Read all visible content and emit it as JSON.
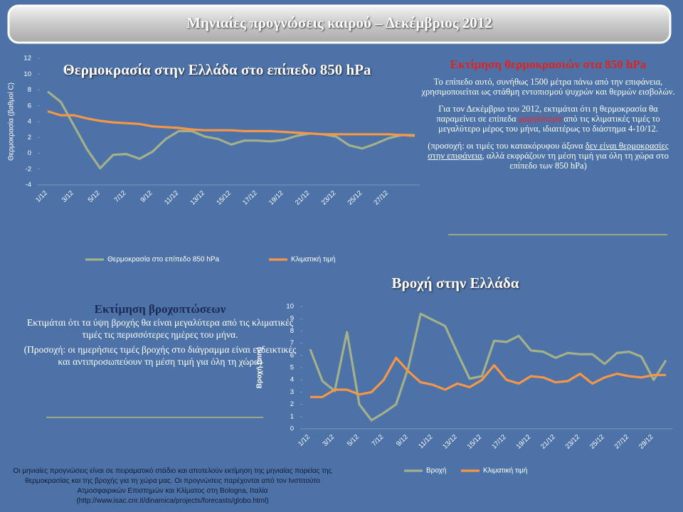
{
  "header": {
    "title": "Μηνιαίες προγνώσεις καιρού – Δεκέμβριος 2012"
  },
  "chart_data": [
    {
      "type": "line",
      "title": "Θερμοκρασία στην Ελλάδα στο επίπεδο 850 hPa",
      "y_label": "Θερμοκρασία (βαθμοί C)",
      "categories": [
        "1/12",
        null,
        "3/12",
        null,
        "5/12",
        null,
        "7/12",
        null,
        "9/12",
        null,
        "11/12",
        null,
        "13/12",
        null,
        "15/12",
        null,
        "17/12",
        null,
        "19/12",
        null,
        "21/12",
        null,
        "23/12",
        null,
        "25/12",
        null,
        "27/12",
        null,
        null
      ],
      "series": [
        {
          "name": "Θερμοκρασία στο επίπεδο 850 hPa",
          "color": "#a3b08a",
          "values": [
            7.8,
            6.5,
            3.5,
            0.5,
            -1.9,
            -0.2,
            -0.1,
            -0.7,
            0.2,
            1.8,
            2.8,
            2.8,
            2.1,
            1.8,
            1.1,
            1.6,
            1.6,
            1.5,
            1.7,
            2.2,
            2.5,
            2.4,
            2.1,
            1.0,
            0.6,
            1.2,
            1.9,
            2.3,
            2.3
          ]
        },
        {
          "name": "Κλιματική τιμή",
          "color": "#f79646",
          "values": [
            5.3,
            4.8,
            4.8,
            4.4,
            4.1,
            3.9,
            3.8,
            3.7,
            3.4,
            3.3,
            3.2,
            3.0,
            2.9,
            2.9,
            2.9,
            2.8,
            2.8,
            2.8,
            2.7,
            2.6,
            2.5,
            2.4,
            2.4,
            2.4,
            2.4,
            2.4,
            2.4,
            2.3,
            2.2
          ]
        }
      ],
      "ylim": [
        -4,
        12
      ],
      "yticks": [
        -4,
        -2,
        0,
        2,
        4,
        6,
        8,
        10,
        12
      ],
      "grid": false,
      "legend": "bottom"
    },
    {
      "type": "line",
      "title": "Βροχή στην Ελλάδα",
      "y_label": "Βροχή (mm)",
      "categories": [
        "1/12",
        null,
        "3/12",
        null,
        "5/12",
        null,
        "7/12",
        null,
        "9/12",
        null,
        "11/12",
        null,
        "13/12",
        null,
        "15/12",
        null,
        "17/12",
        null,
        "19/12",
        null,
        "21/12",
        null,
        "23/12",
        null,
        "25/12",
        null,
        "27/12",
        null,
        "29/12",
        null
      ],
      "series": [
        {
          "name": "Βροχή",
          "color": "#a3b08a",
          "values": [
            6.5,
            3.9,
            3.1,
            7.9,
            2.0,
            0.7,
            1.3,
            2.0,
            5.0,
            9.4,
            8.9,
            8.4,
            6.2,
            4.1,
            4.3,
            7.2,
            7.1,
            7.6,
            6.4,
            6.3,
            5.8,
            6.2,
            6.1,
            6.1,
            5.3,
            6.2,
            6.3,
            5.9,
            4.0,
            5.6
          ]
        },
        {
          "name": "Κλιματική τιμή",
          "color": "#f79646",
          "values": [
            2.6,
            2.6,
            3.2,
            3.2,
            2.8,
            3.0,
            4.0,
            5.8,
            4.7,
            3.8,
            3.6,
            3.2,
            3.7,
            3.4,
            4.0,
            5.2,
            4.0,
            3.7,
            4.3,
            4.2,
            3.8,
            3.9,
            4.5,
            3.7,
            4.2,
            4.5,
            4.3,
            4.2,
            4.4,
            4.4
          ]
        }
      ],
      "ylim": [
        0,
        10
      ],
      "yticks": [
        0,
        1,
        2,
        3,
        4,
        5,
        6,
        7,
        8,
        9,
        10
      ],
      "grid": false,
      "legend": "bottom"
    }
  ],
  "temperature_note": {
    "heading": "Εκτίμηση θερμοκρασιών στα 850 hPa",
    "paragraphs": [
      [
        "Το επίπεδο αυτό, συνήθως 1500 μέτρα πάνω από την επιφάνεια, χρησιμοποιείται ως στάθμη εντοπισμού ψυχρών και θερμών εισβολών."
      ],
      [
        "Για τον Δεκέμβριο του 2012, εκτιμάται ότι η θερμοκρασία θα παραμείνει σε επίπεδα ",
        {
          "text": "χαμηλότερα",
          "color": "#ff2020"
        },
        " από τις κλιματικές τιμές το μεγαλύτερο μέρος του μήνα, ιδιαιτέρως το διάστημα 4-10/12."
      ],
      [
        "(προσοχή: οι τιμές του κατακόρυφου άξονα ",
        {
          "text": "δεν είναι θερμοκρασίες στην επιφάνεια",
          "underline": true
        },
        ", αλλά εκφράζουν τη μέση τιμή για όλη τη χώρα στο επίπεδο των 850 hPa)"
      ]
    ]
  },
  "rain_note": {
    "heading": "Εκτίμηση βροχοπτώσεων",
    "paragraphs": [
      [
        "Εκτιμάται ότι τα ύψη βροχής θα είναι μεγαλύτερα από τις κλιματικές τιμές τις περισσότερες ημέρες του μήνα."
      ],
      [
        "(Προσοχή: οι ημερήσιες τιμές βροχής στο διάγραμμα είναι ενδεικτικές και αντιπροσωπεύουν τη μέση τιμή για όλη τη χώρα)"
      ]
    ]
  },
  "footer": {
    "text": "Οι μηνιαίες προγνώσεις είναι σε πειραματικό στάδιο και αποτελούν εκτίμηση της μηνιαίας πορείας της θερμοκρασίας και της βροχής για τη χώρα μας. Οι προγνώσεις παρέχονται από τον Ινστιτούτο Ατμοσφαιρικών Επιστημών και Κλίματος στη Bologna, Ιταλία (http://www.isac.cnr.it/dinamica/projects/forecasts/globo.html)"
  }
}
